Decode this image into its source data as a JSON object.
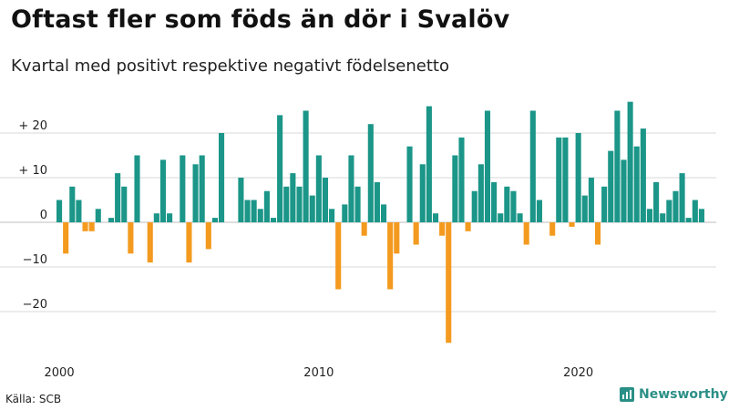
{
  "header": {
    "title": "Oftast fler som föds än dör i Svalöv",
    "subtitle": "Kvartal med positivt respektive negativt födelsenetto"
  },
  "footer": {
    "source": "Källa: SCB",
    "brand": "Newsworthy"
  },
  "colors": {
    "positive": "#1b9688",
    "negative": "#f39a1f",
    "grid": "#d8d8d8",
    "brand": "#2a8f86"
  },
  "chart_data": {
    "type": "bar",
    "title": "Oftast fler som föds än dör i Svalöv",
    "subtitle": "Kvartal med positivt respektive negativt födelsenetto",
    "xlabel": "",
    "ylabel": "",
    "ylim": [
      -28,
      28
    ],
    "y_ticks": [
      {
        "value": 20,
        "label": "+ 20"
      },
      {
        "value": 10,
        "label": "+ 10"
      },
      {
        "value": 0,
        "label": "0"
      },
      {
        "value": -10,
        "label": "−10"
      },
      {
        "value": -20,
        "label": "−20"
      }
    ],
    "x_ticks": [
      {
        "index": 0,
        "label": "2000"
      },
      {
        "index": 40,
        "label": "2010"
      },
      {
        "index": 80,
        "label": "2020"
      }
    ],
    "start_quarter": "2000Q1",
    "values": [
      5,
      -7,
      8,
      5,
      -2,
      -2,
      3,
      0,
      1,
      11,
      8,
      -7,
      15,
      0,
      -9,
      2,
      14,
      2,
      0,
      15,
      -9,
      13,
      15,
      -6,
      1,
      20,
      0,
      0,
      10,
      5,
      5,
      3,
      7,
      1,
      24,
      8,
      11,
      8,
      25,
      6,
      15,
      10,
      3,
      -15,
      4,
      15,
      8,
      -3,
      22,
      9,
      4,
      -15,
      -7,
      0,
      17,
      -5,
      13,
      26,
      2,
      -3,
      -27,
      15,
      19,
      -2,
      7,
      13,
      25,
      9,
      2,
      8,
      7,
      2,
      -5,
      25,
      5,
      0,
      -3,
      19,
      19,
      -1,
      20,
      6,
      10,
      -5,
      8,
      16,
      25,
      14,
      27,
      17,
      21,
      3,
      9,
      2,
      5,
      7,
      11,
      1,
      5,
      3
    ]
  }
}
